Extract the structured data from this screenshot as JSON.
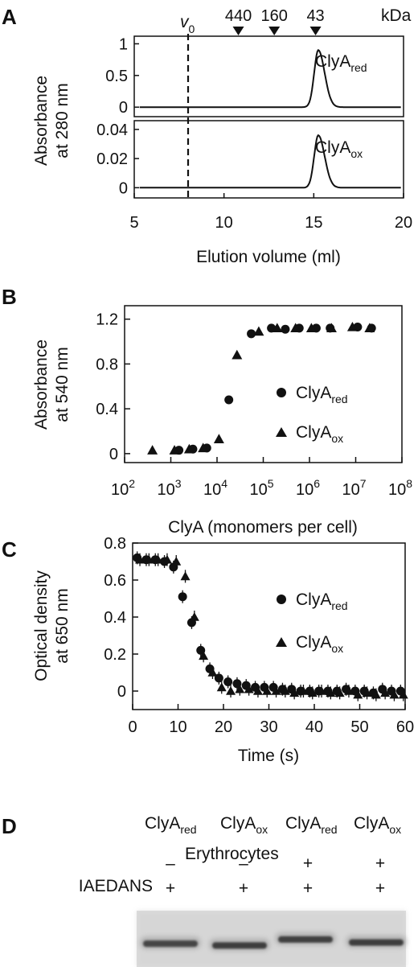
{
  "chart_data": [
    {
      "panel": "A",
      "type": "line",
      "subtype": "elution profile (two stacked traces)",
      "xlabel": "Elution volume (ml)",
      "ylabel": [
        "Absorbance",
        "at 280 nm"
      ],
      "xlim": [
        5,
        20
      ],
      "xticks": [
        "5",
        "10",
        "15",
        "20"
      ],
      "v0_label": "v",
      "v0_sub": "0",
      "v0_x": 8,
      "markers_unit": "kDa",
      "markers": [
        {
          "label": "440",
          "x": 10.8
        },
        {
          "label": "160",
          "x": 12.8
        },
        {
          "label": "43",
          "x": 15.1
        }
      ],
      "traces": [
        {
          "name": "ClyA",
          "sub": "red",
          "ylim": [
            -0.15,
            1.12
          ],
          "yticks": [
            "0",
            "0.5",
            "1"
          ],
          "peak_x": 15.25,
          "peak_y": 0.9
        },
        {
          "name": "ClyA",
          "sub": "ox",
          "ylim": [
            -0.007,
            0.046
          ],
          "yticks": [
            "0",
            "0.02",
            "0.04"
          ],
          "peak_x": 15.25,
          "peak_y": 0.036
        }
      ]
    },
    {
      "panel": "B",
      "type": "scatter",
      "xlabel": "ClyA (monomers per cell)",
      "ylabel": [
        "Absorbance",
        "at 540 nm"
      ],
      "xscale": "log",
      "xlim": [
        100,
        100000000
      ],
      "xticks": [
        {
          "base": "10",
          "exp": "2"
        },
        {
          "base": "10",
          "exp": "3"
        },
        {
          "base": "10",
          "exp": "4"
        },
        {
          "base": "10",
          "exp": "5"
        },
        {
          "base": "10",
          "exp": "6"
        },
        {
          "base": "10",
          "exp": "7"
        },
        {
          "base": "10",
          "exp": "8"
        }
      ],
      "ylim": [
        -0.08,
        1.32
      ],
      "yticks": [
        "0",
        "0.4",
        "0.8",
        "1.2"
      ],
      "legend": [
        {
          "name": "ClyA",
          "sub": "red",
          "marker": "circle"
        },
        {
          "name": "ClyA",
          "sub": "ox",
          "marker": "triangle"
        }
      ],
      "series": [
        {
          "name": "ClyA",
          "sub": "red",
          "marker": "circle",
          "x": [
            1500,
            3000,
            6000,
            18000,
            55000,
            150000,
            300000,
            600000,
            1400000,
            2800000,
            11000000,
            22000000
          ],
          "y": [
            0.03,
            0.04,
            0.05,
            0.48,
            1.07,
            1.12,
            1.11,
            1.12,
            1.12,
            1.12,
            1.13,
            1.12
          ]
        },
        {
          "name": "ClyA",
          "sub": "ox",
          "marker": "triangle",
          "x": [
            400,
            1200,
            2500,
            5000,
            11000,
            27000,
            80000,
            200000,
            500000,
            1100000,
            3000000,
            8500000,
            20000000
          ],
          "y": [
            0.03,
            0.03,
            0.04,
            0.05,
            0.13,
            0.88,
            1.09,
            1.12,
            1.12,
            1.12,
            1.12,
            1.13,
            1.12
          ]
        }
      ]
    },
    {
      "panel": "C",
      "type": "scatter",
      "xlabel": "Time (s)",
      "ylabel": [
        "Optical density",
        "at 650 nm"
      ],
      "xlim": [
        0,
        60
      ],
      "xticks": [
        "0",
        "10",
        "20",
        "30",
        "40",
        "50",
        "60"
      ],
      "ylim": [
        -0.1,
        0.8
      ],
      "yticks": [
        "0",
        "0.2",
        "0.4",
        "0.6",
        "0.8"
      ],
      "legend": [
        {
          "name": "ClyA",
          "sub": "red",
          "marker": "circle"
        },
        {
          "name": "ClyA",
          "sub": "ox",
          "marker": "triangle"
        }
      ],
      "series": [
        {
          "name": "ClyA",
          "sub": "red",
          "marker": "circle",
          "x": [
            1,
            3,
            5,
            7,
            9,
            11,
            13,
            15,
            17,
            19,
            21,
            23,
            25,
            27,
            29,
            31,
            33,
            35,
            37,
            39,
            41,
            43,
            45,
            47,
            49,
            51,
            53,
            55,
            57,
            59
          ],
          "y": [
            0.72,
            0.71,
            0.71,
            0.7,
            0.67,
            0.51,
            0.37,
            0.22,
            0.12,
            0.07,
            0.05,
            0.04,
            0.03,
            0.02,
            0.02,
            0.02,
            0.01,
            0.01,
            0.0,
            0.0,
            0.0,
            0.0,
            0.0,
            0.01,
            0.0,
            0.0,
            -0.01,
            0.01,
            0.0,
            0.0
          ]
        },
        {
          "name": "ClyA",
          "sub": "ox",
          "marker": "triangle",
          "x": [
            1.6,
            3.6,
            5.6,
            7.6,
            9.6,
            11.6,
            13.6,
            15.6,
            17.6,
            19.6,
            21.6,
            23.6,
            25.6,
            27.6,
            29.6,
            31.6,
            33.6,
            35.6,
            37.6,
            39.6,
            41.6,
            43.6,
            45.6,
            47.6,
            49.6,
            51.6,
            53.6,
            55.6,
            57.6,
            59.6
          ],
          "y": [
            0.71,
            0.71,
            0.71,
            0.71,
            0.7,
            0.62,
            0.4,
            0.19,
            0.1,
            0.02,
            0.0,
            0.01,
            0.01,
            0.0,
            0.0,
            0.0,
            0.0,
            -0.01,
            0.0,
            -0.01,
            0.0,
            -0.01,
            -0.01,
            0.0,
            -0.02,
            -0.01,
            -0.02,
            -0.01,
            -0.02,
            -0.02
          ]
        }
      ]
    }
  ],
  "panel_d": {
    "label": "D",
    "columns": [
      {
        "name": "ClyA",
        "sub": "red"
      },
      {
        "name": "ClyA",
        "sub": "ox"
      },
      {
        "name": "ClyA",
        "sub": "red"
      },
      {
        "name": "ClyA",
        "sub": "ox"
      }
    ],
    "rows": [
      {
        "label": "Erythrocytes",
        "values": [
          "–",
          "–",
          "+",
          "+"
        ]
      },
      {
        "label": "IAEDANS",
        "values": [
          "+",
          "+",
          "+",
          "+"
        ]
      }
    ],
    "gel_bands": [
      {
        "intensity": 0.75,
        "offset": 0.6
      },
      {
        "intensity": 0.85,
        "offset": 0.75
      },
      {
        "intensity": 0.8,
        "offset": 0.25
      },
      {
        "intensity": 0.85,
        "offset": 0.5
      }
    ]
  }
}
